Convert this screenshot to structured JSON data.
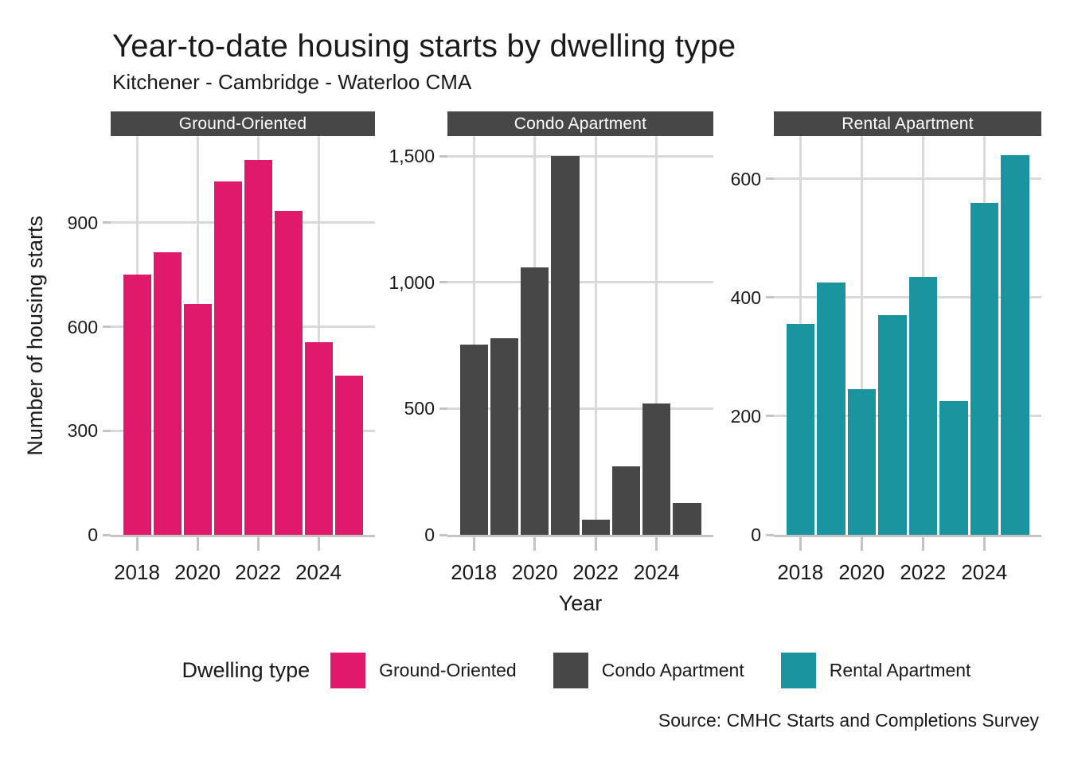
{
  "chart_data": {
    "type": "bar",
    "title": "Year-to-date housing starts by dwelling type",
    "subtitle": "Kitchener - Cambridge - Waterloo CMA",
    "xlabel": "Year",
    "ylabel": "Number of housing starts",
    "source_note": "Source: CMHC Starts and Completions Survey",
    "categories": [
      2018,
      2019,
      2020,
      2021,
      2022,
      2023,
      2024,
      2025
    ],
    "x_axis_tick_labels": [
      "2018",
      "2020",
      "2022",
      "2024"
    ],
    "grid": "major-on",
    "legend_position": "bottom",
    "background_color": "#ffffff",
    "strip_color": "#474747",
    "gridline_color": "#d9d9d9",
    "axis_line_color": "#c4c4c4",
    "legend": {
      "title": "Dwelling type",
      "items": [
        {
          "label": "Ground-Oriented",
          "color": "#E1196D"
        },
        {
          "label": "Condo Apartment",
          "color": "#474747"
        },
        {
          "label": "Rental Apartment",
          "color": "#1A949E"
        }
      ]
    },
    "facets": [
      {
        "label": "Ground-Oriented",
        "color": "#E1196D",
        "values": [
          750,
          815,
          665,
          1020,
          1080,
          935,
          555,
          460
        ],
        "y_ticks": [
          0,
          300,
          600,
          900
        ],
        "ylim": [
          0,
          1150
        ]
      },
      {
        "label": "Condo Apartment",
        "color": "#474747",
        "values": [
          755,
          780,
          1060,
          1500,
          60,
          270,
          520,
          125
        ],
        "y_ticks": [
          0,
          500,
          1000,
          1500
        ],
        "ylim": [
          0,
          1580
        ]
      },
      {
        "label": "Rental Apartment",
        "color": "#1A949E",
        "values": [
          355,
          425,
          245,
          370,
          435,
          225,
          560,
          640
        ],
        "y_ticks": [
          0,
          200,
          400,
          600
        ],
        "ylim": [
          0,
          672
        ]
      }
    ]
  }
}
